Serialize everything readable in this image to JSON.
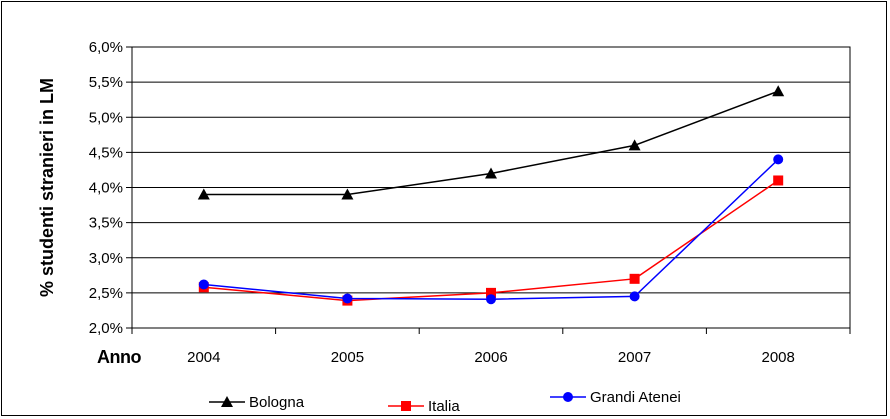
{
  "chart_data": {
    "type": "line",
    "title": "",
    "xlabel": "Anno",
    "ylabel": "% studenti stranieri in LM",
    "categories": [
      "2004",
      "2005",
      "2006",
      "2007",
      "2008"
    ],
    "ylim": [
      2.0,
      6.0
    ],
    "yticks": [
      "2,0%",
      "2,5%",
      "3,0%",
      "3,5%",
      "4,0%",
      "4,5%",
      "5,0%",
      "5,5%",
      "6,0%"
    ],
    "grid": "horizontal",
    "legend_position": "bottom",
    "series": [
      {
        "name": "Bologna",
        "values": [
          3.9,
          3.9,
          4.2,
          4.6,
          5.37
        ],
        "color": "#000000",
        "marker": "triangle"
      },
      {
        "name": "Italia",
        "values": [
          2.58,
          2.39,
          2.5,
          2.7,
          4.1
        ],
        "color": "#ff0000",
        "marker": "square"
      },
      {
        "name": "Grandi Atenei",
        "values": [
          2.62,
          2.42,
          2.41,
          2.45,
          4.4
        ],
        "color": "#0000ff",
        "marker": "circle"
      }
    ]
  }
}
